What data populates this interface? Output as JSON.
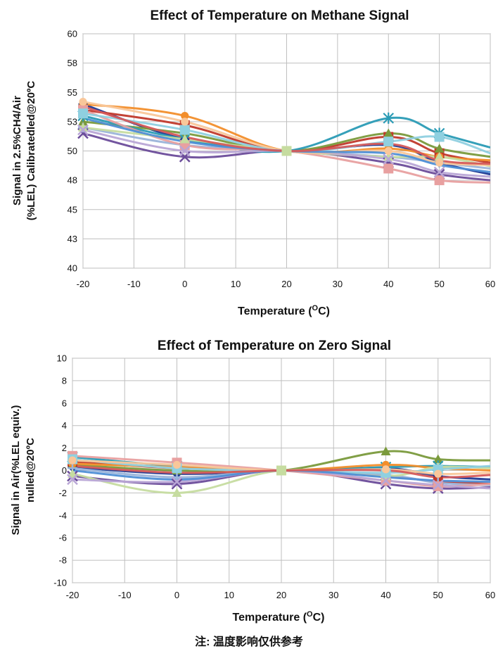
{
  "colors": {
    "series": [
      "#1f3a93",
      "#c0392b",
      "#7a9a3c",
      "#6b4c9a",
      "#2a9bb5",
      "#f28e2b",
      "#9bb4da",
      "#e8a0a0",
      "#c6dca0",
      "#b9a6d6",
      "#8fd0e0",
      "#f9c79a",
      "#4f8fd6",
      "#d65a5a"
    ],
    "grid": "#bfbfbf",
    "axis": "#808080"
  },
  "chart_data": [
    {
      "type": "line",
      "title": "Effect of Temperature on Methane Signal",
      "xlabel": "Temperature (",
      "xlabel_sup": "O",
      "xlabel_end": "C)",
      "ylabel_line1": "Signal in 2.5%CH4/Air",
      "ylabel_line2": "(%LEL) Calibratedled@20ºC",
      "x_ticks": [
        "-20",
        "-10",
        "0",
        "10",
        "20",
        "30",
        "40",
        "50",
        "60"
      ],
      "y_ticks": [
        "40",
        "43",
        "45",
        "48",
        "50",
        "53",
        "55",
        "58",
        "60"
      ],
      "xlim": [
        -20,
        60
      ],
      "ylim": [
        40,
        60
      ],
      "grid": true,
      "x": [
        -20,
        0,
        20,
        40,
        50,
        60
      ],
      "series": [
        {
          "values": [
            54.0,
            51.0,
            50.0,
            50.5,
            49.0,
            48.0
          ],
          "marker": "diamond"
        },
        {
          "values": [
            53.5,
            52.2,
            50.0,
            51.2,
            49.8,
            49.0
          ],
          "marker": "square"
        },
        {
          "values": [
            52.5,
            51.5,
            50.0,
            51.5,
            50.2,
            49.5
          ],
          "marker": "triangle"
        },
        {
          "values": [
            51.5,
            49.5,
            50.0,
            49.0,
            48.0,
            47.5
          ],
          "marker": "x"
        },
        {
          "values": [
            53.0,
            51.0,
            50.0,
            52.8,
            51.5,
            50.3
          ],
          "marker": "star"
        },
        {
          "values": [
            54.0,
            53.0,
            50.0,
            50.2,
            49.5,
            49.2
          ],
          "marker": "circle"
        },
        {
          "values": [
            52.0,
            50.5,
            50.0,
            49.5,
            49.0,
            48.5
          ],
          "marker": "plus"
        },
        {
          "values": [
            53.5,
            50.5,
            50.0,
            48.5,
            47.5,
            47.3
          ],
          "marker": "square"
        },
        {
          "values": [
            52.0,
            51.0,
            50.0,
            49.5,
            49.5,
            48.7
          ],
          "marker": "triangle"
        },
        {
          "values": [
            51.8,
            50.0,
            50.0,
            49.3,
            48.2,
            47.8
          ],
          "marker": "x"
        },
        {
          "values": [
            53.2,
            51.8,
            50.0,
            50.8,
            51.2,
            49.8
          ],
          "marker": "square"
        },
        {
          "values": [
            54.2,
            52.5,
            50.0,
            50.0,
            49.0,
            48.8
          ],
          "marker": "circle"
        },
        {
          "values": [
            52.8,
            50.8,
            50.0,
            49.8,
            48.8,
            48.2
          ],
          "marker": "none"
        },
        {
          "values": [
            53.8,
            51.2,
            50.0,
            50.6,
            49.2,
            48.9
          ],
          "marker": "none"
        }
      ]
    },
    {
      "type": "line",
      "title": "Effect of Temperature on Zero Signal",
      "xlabel": "Temperature (",
      "xlabel_sup": "O",
      "xlabel_end": "C)",
      "ylabel_line1": "Signal in Air(%LEL equiv.)",
      "ylabel_line2": "nulled@20ºC",
      "x_ticks": [
        "-20",
        "-10",
        "0",
        "10",
        "20",
        "30",
        "40",
        "50",
        "60"
      ],
      "y_ticks": [
        "-10",
        "-8",
        "-6",
        "-4",
        "-2",
        "0",
        "2",
        "4",
        "6",
        "8",
        "10"
      ],
      "xlim": [
        -20,
        60
      ],
      "ylim": [
        -10,
        10
      ],
      "grid": true,
      "x": [
        -20,
        0,
        20,
        40,
        50,
        60
      ],
      "series": [
        {
          "values": [
            0.3,
            -0.3,
            0.0,
            0.2,
            -0.5,
            -0.8
          ],
          "marker": "diamond"
        },
        {
          "values": [
            0.8,
            0.2,
            0.0,
            -0.5,
            -1.0,
            -1.2
          ],
          "marker": "square"
        },
        {
          "values": [
            0.5,
            0.0,
            0.0,
            1.7,
            1.0,
            0.9
          ],
          "marker": "triangle"
        },
        {
          "values": [
            -0.5,
            -1.2,
            0.0,
            -1.2,
            -1.6,
            -1.5
          ],
          "marker": "x"
        },
        {
          "values": [
            1.2,
            0.4,
            0.0,
            0.3,
            0.4,
            0.3
          ],
          "marker": "star"
        },
        {
          "values": [
            0.6,
            0.3,
            0.0,
            0.5,
            0.2,
            0.0
          ],
          "marker": "circle"
        },
        {
          "values": [
            0.2,
            -0.6,
            0.0,
            -0.4,
            -1.1,
            -1.3
          ],
          "marker": "plus"
        },
        {
          "values": [
            1.3,
            0.7,
            0.0,
            -0.9,
            -1.4,
            -1.2
          ],
          "marker": "square"
        },
        {
          "values": [
            -0.3,
            -2.0,
            0.0,
            -0.5,
            0.3,
            0.2
          ],
          "marker": "triangle"
        },
        {
          "values": [
            -0.8,
            -1.0,
            0.0,
            -0.9,
            -1.3,
            -1.6
          ],
          "marker": "x"
        },
        {
          "values": [
            1.0,
            0.2,
            0.0,
            -0.2,
            0.1,
            0.4
          ],
          "marker": "square"
        },
        {
          "values": [
            0.9,
            0.5,
            0.0,
            0.1,
            -0.3,
            -0.2
          ],
          "marker": "circle"
        },
        {
          "values": [
            0.0,
            -0.8,
            0.0,
            -0.6,
            -0.9,
            -1.0
          ],
          "marker": "none"
        },
        {
          "values": [
            0.4,
            -0.2,
            0.0,
            0.0,
            -0.6,
            -0.4
          ],
          "marker": "none"
        }
      ]
    }
  ],
  "footnote": "注: 温度影响仅供参考"
}
